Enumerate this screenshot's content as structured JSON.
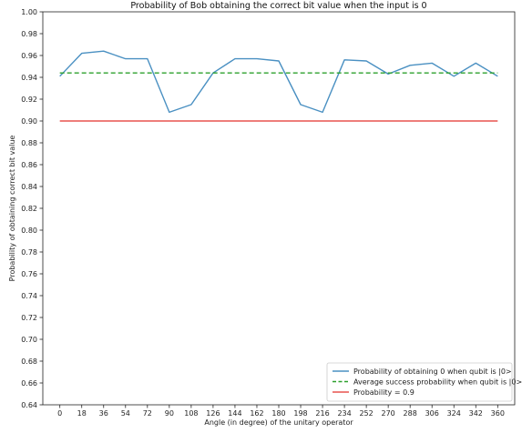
{
  "chart_data": {
    "type": "line",
    "title": "Probability of Bob obtaining the correct bit value when the input is 0",
    "xlabel": "Angle (in degree) of the unitary operator",
    "ylabel": "Probability of obtaining correct bit value",
    "xlim": [
      -14,
      374
    ],
    "ylim": [
      0.64,
      1.0
    ],
    "x_ticks": [
      0,
      18,
      36,
      54,
      72,
      90,
      108,
      126,
      144,
      162,
      180,
      198,
      216,
      234,
      252,
      270,
      288,
      306,
      324,
      342,
      360
    ],
    "y_ticks": [
      0.64,
      0.66,
      0.68,
      0.7,
      0.72,
      0.74,
      0.76,
      0.78,
      0.8,
      0.82,
      0.84,
      0.86,
      0.88,
      0.9,
      0.92,
      0.94,
      0.96,
      0.98,
      1.0
    ],
    "y_tick_labels": [
      "0.64",
      "0.66",
      "0.68",
      "0.70",
      "0.72",
      "0.74",
      "0.76",
      "0.78",
      "0.80",
      "0.82",
      "0.84",
      "0.86",
      "0.88",
      "0.90",
      "0.92",
      "0.94",
      "0.96",
      "0.98",
      "1.00"
    ],
    "grid": false,
    "legend_position": "bottom-right",
    "series": [
      {
        "name": "Probability of obtaining 0 when qubit is |0>",
        "style": "solid",
        "color": "#4a90c2",
        "x": [
          0,
          18,
          36,
          54,
          72,
          90,
          108,
          126,
          144,
          162,
          180,
          198,
          216,
          234,
          252,
          270,
          288,
          306,
          324,
          342,
          360
        ],
        "y": [
          0.941,
          0.962,
          0.964,
          0.957,
          0.957,
          0.908,
          0.915,
          0.944,
          0.957,
          0.957,
          0.955,
          0.915,
          0.908,
          0.956,
          0.955,
          0.943,
          0.951,
          0.953,
          0.941,
          0.953,
          0.941
        ]
      },
      {
        "name": "Average success probability when qubit is |0>",
        "style": "dashed",
        "color": "#2ca02c",
        "x": [
          0,
          360
        ],
        "y": [
          0.944,
          0.944
        ]
      },
      {
        "name": "Probability = 0.9",
        "style": "solid",
        "color": "#e8534f",
        "x": [
          0,
          360
        ],
        "y": [
          0.9,
          0.9
        ]
      }
    ]
  }
}
